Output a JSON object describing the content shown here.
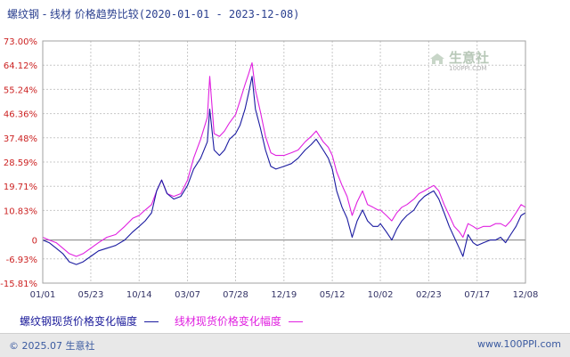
{
  "title": {
    "main": "螺纹钢 - 线材 价格趋势比较",
    "range": "(2020-01-01 - 2023-12-08)"
  },
  "watermark": {
    "text": "生意社",
    "sub": "100PPI.COM"
  },
  "footer": {
    "copyright": "© 2025.07 生意社",
    "url": "www.100PPI.com"
  },
  "colors": {
    "series1": "#1a1aa0",
    "series2": "#e020e0",
    "axis_label": "#cc2222",
    "grid": "#c8c8c8",
    "zero": "#808080"
  },
  "chart_data": {
    "type": "line",
    "title": "螺纹钢 - 线材 价格趋势比较",
    "ylim": [
      -15.81,
      73.0
    ],
    "yticks": [
      "73.00%",
      "64.12%",
      "55.24%",
      "46.36%",
      "37.48%",
      "28.59%",
      "19.71%",
      "10.83%",
      "0",
      "-6.93%",
      "-15.81%"
    ],
    "ytick_values": [
      73.0,
      64.12,
      55.24,
      46.36,
      37.48,
      28.59,
      19.71,
      10.83,
      0,
      -6.93,
      -15.81
    ],
    "xticks": [
      "01/01",
      "05/23",
      "10/14",
      "03/07",
      "07/28",
      "12/19",
      "05/12",
      "10/02",
      "02/23",
      "07/17",
      "12/08"
    ],
    "xtick_dates": [
      "2020-01-01",
      "2020-05-23",
      "2020-10-14",
      "2021-03-07",
      "2021-07-28",
      "2021-12-19",
      "2022-05-12",
      "2022-10-02",
      "2023-02-23",
      "2023-07-17",
      "2023-12-08"
    ],
    "grid": true,
    "legend": "bottom",
    "series": [
      {
        "name": "螺纹钢现货价格变化幅度",
        "points": [
          [
            "2020-01-01",
            0
          ],
          [
            "2020-01-20",
            -1
          ],
          [
            "2020-02-10",
            -3
          ],
          [
            "2020-03-01",
            -5
          ],
          [
            "2020-03-20",
            -8
          ],
          [
            "2020-04-10",
            -9
          ],
          [
            "2020-04-30",
            -8
          ],
          [
            "2020-05-23",
            -6
          ],
          [
            "2020-06-15",
            -4
          ],
          [
            "2020-07-10",
            -3
          ],
          [
            "2020-08-05",
            -2
          ],
          [
            "2020-09-01",
            0
          ],
          [
            "2020-09-25",
            3
          ],
          [
            "2020-10-14",
            5
          ],
          [
            "2020-11-01",
            7
          ],
          [
            "2020-11-20",
            10
          ],
          [
            "2020-12-05",
            18
          ],
          [
            "2020-12-20",
            22
          ],
          [
            "2021-01-05",
            17
          ],
          [
            "2021-01-25",
            15
          ],
          [
            "2021-02-15",
            16
          ],
          [
            "2021-03-07",
            20
          ],
          [
            "2021-03-25",
            26
          ],
          [
            "2021-04-15",
            30
          ],
          [
            "2021-05-05",
            36
          ],
          [
            "2021-05-12",
            48
          ],
          [
            "2021-05-25",
            33
          ],
          [
            "2021-06-10",
            31
          ],
          [
            "2021-06-25",
            33
          ],
          [
            "2021-07-10",
            37
          ],
          [
            "2021-07-28",
            39
          ],
          [
            "2021-08-10",
            42
          ],
          [
            "2021-08-25",
            48
          ],
          [
            "2021-09-05",
            54
          ],
          [
            "2021-09-15",
            60
          ],
          [
            "2021-09-25",
            48
          ],
          [
            "2021-10-10",
            41
          ],
          [
            "2021-10-25",
            33
          ],
          [
            "2021-11-10",
            27
          ],
          [
            "2021-11-25",
            26
          ],
          [
            "2021-12-19",
            27
          ],
          [
            "2022-01-10",
            28
          ],
          [
            "2022-01-30",
            30
          ],
          [
            "2022-02-20",
            33
          ],
          [
            "2022-03-10",
            35
          ],
          [
            "2022-03-25",
            37
          ],
          [
            "2022-04-15",
            33
          ],
          [
            "2022-04-30",
            30
          ],
          [
            "2022-05-12",
            26
          ],
          [
            "2022-05-25",
            18
          ],
          [
            "2022-06-10",
            12
          ],
          [
            "2022-06-25",
            8
          ],
          [
            "2022-07-10",
            1
          ],
          [
            "2022-07-25",
            7
          ],
          [
            "2022-08-10",
            11
          ],
          [
            "2022-08-25",
            7
          ],
          [
            "2022-09-10",
            5
          ],
          [
            "2022-09-25",
            5
          ],
          [
            "2022-10-02",
            6
          ],
          [
            "2022-10-20",
            3
          ],
          [
            "2022-11-05",
            0
          ],
          [
            "2022-11-20",
            4
          ],
          [
            "2022-12-05",
            7
          ],
          [
            "2022-12-20",
            9
          ],
          [
            "2023-01-10",
            11
          ],
          [
            "2023-01-25",
            14
          ],
          [
            "2023-02-10",
            16
          ],
          [
            "2023-02-23",
            17
          ],
          [
            "2023-03-10",
            18
          ],
          [
            "2023-03-25",
            15
          ],
          [
            "2023-04-10",
            10
          ],
          [
            "2023-04-25",
            5
          ],
          [
            "2023-05-10",
            1
          ],
          [
            "2023-05-25",
            -3
          ],
          [
            "2023-06-05",
            -6
          ],
          [
            "2023-06-20",
            2
          ],
          [
            "2023-07-05",
            -1
          ],
          [
            "2023-07-17",
            -2
          ],
          [
            "2023-08-05",
            -1
          ],
          [
            "2023-08-25",
            0
          ],
          [
            "2023-09-10",
            0
          ],
          [
            "2023-09-25",
            1
          ],
          [
            "2023-10-10",
            -1
          ],
          [
            "2023-10-25",
            2
          ],
          [
            "2023-11-10",
            5
          ],
          [
            "2023-11-25",
            9
          ],
          [
            "2023-12-08",
            10
          ]
        ]
      },
      {
        "name": "线材现货价格变化幅度",
        "points": [
          [
            "2020-01-01",
            1
          ],
          [
            "2020-01-20",
            0
          ],
          [
            "2020-02-10",
            -1
          ],
          [
            "2020-03-01",
            -3
          ],
          [
            "2020-03-20",
            -5
          ],
          [
            "2020-04-10",
            -6
          ],
          [
            "2020-04-30",
            -5
          ],
          [
            "2020-05-23",
            -3
          ],
          [
            "2020-06-15",
            -1
          ],
          [
            "2020-07-10",
            1
          ],
          [
            "2020-08-05",
            2
          ],
          [
            "2020-09-01",
            5
          ],
          [
            "2020-09-25",
            8
          ],
          [
            "2020-10-14",
            9
          ],
          [
            "2020-11-01",
            11
          ],
          [
            "2020-11-20",
            13
          ],
          [
            "2020-12-05",
            18
          ],
          [
            "2020-12-20",
            22
          ],
          [
            "2021-01-05",
            17
          ],
          [
            "2021-01-25",
            16
          ],
          [
            "2021-02-15",
            17
          ],
          [
            "2021-03-07",
            22
          ],
          [
            "2021-03-25",
            30
          ],
          [
            "2021-04-15",
            37
          ],
          [
            "2021-05-05",
            45
          ],
          [
            "2021-05-12",
            60
          ],
          [
            "2021-05-25",
            39
          ],
          [
            "2021-06-10",
            38
          ],
          [
            "2021-06-25",
            40
          ],
          [
            "2021-07-10",
            43
          ],
          [
            "2021-07-28",
            46
          ],
          [
            "2021-08-10",
            51
          ],
          [
            "2021-08-25",
            57
          ],
          [
            "2021-09-05",
            61
          ],
          [
            "2021-09-15",
            65
          ],
          [
            "2021-09-25",
            55
          ],
          [
            "2021-10-10",
            47
          ],
          [
            "2021-10-25",
            38
          ],
          [
            "2021-11-10",
            32
          ],
          [
            "2021-11-25",
            31
          ],
          [
            "2021-12-19",
            31
          ],
          [
            "2022-01-10",
            32
          ],
          [
            "2022-01-30",
            33
          ],
          [
            "2022-02-20",
            36
          ],
          [
            "2022-03-10",
            38
          ],
          [
            "2022-03-25",
            40
          ],
          [
            "2022-04-15",
            36
          ],
          [
            "2022-04-30",
            34
          ],
          [
            "2022-05-12",
            31
          ],
          [
            "2022-05-25",
            25
          ],
          [
            "2022-06-10",
            20
          ],
          [
            "2022-06-25",
            16
          ],
          [
            "2022-07-10",
            9
          ],
          [
            "2022-07-25",
            14
          ],
          [
            "2022-08-10",
            18
          ],
          [
            "2022-08-25",
            13
          ],
          [
            "2022-09-10",
            12
          ],
          [
            "2022-09-25",
            11
          ],
          [
            "2022-10-02",
            11
          ],
          [
            "2022-10-20",
            9
          ],
          [
            "2022-11-05",
            7
          ],
          [
            "2022-11-20",
            10
          ],
          [
            "2022-12-05",
            12
          ],
          [
            "2022-12-20",
            13
          ],
          [
            "2023-01-10",
            15
          ],
          [
            "2023-01-25",
            17
          ],
          [
            "2023-02-10",
            18
          ],
          [
            "2023-02-23",
            19
          ],
          [
            "2023-03-10",
            20
          ],
          [
            "2023-03-25",
            18
          ],
          [
            "2023-04-10",
            13
          ],
          [
            "2023-04-25",
            9
          ],
          [
            "2023-05-10",
            5
          ],
          [
            "2023-05-25",
            3
          ],
          [
            "2023-06-05",
            1
          ],
          [
            "2023-06-20",
            6
          ],
          [
            "2023-07-05",
            5
          ],
          [
            "2023-07-17",
            4
          ],
          [
            "2023-08-05",
            5
          ],
          [
            "2023-08-25",
            5
          ],
          [
            "2023-09-10",
            6
          ],
          [
            "2023-09-25",
            6
          ],
          [
            "2023-10-10",
            5
          ],
          [
            "2023-10-25",
            7
          ],
          [
            "2023-11-10",
            10
          ],
          [
            "2023-11-25",
            13
          ],
          [
            "2023-12-08",
            12
          ]
        ]
      }
    ]
  }
}
